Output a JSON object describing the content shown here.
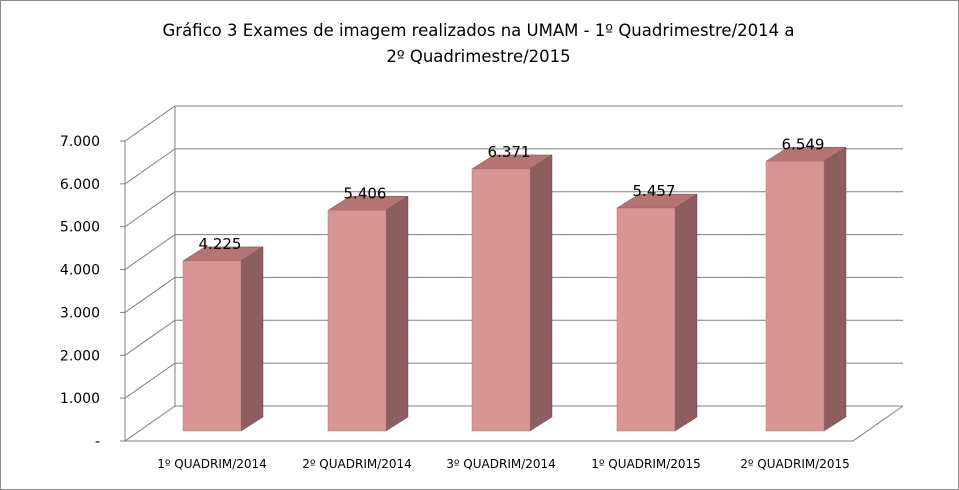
{
  "chart_data": {
    "type": "bar",
    "title": "Gráfico 3 Exames de imagem realizados na UMAM - 1º Quadrimestre/2014 a 2º Quadrimestre/2015",
    "title_lines": [
      "Gráfico 3 Exames de imagem realizados na UMAM - 1º Quadrimestre/2014 a",
      "2º Quadrimestre/2015"
    ],
    "categories": [
      "1º QUADRIM/2014",
      "2º QUADRIM/2014",
      "3º QUADRIM/2014",
      "1º QUADRIM/2015",
      "2º QUADRIM/2015"
    ],
    "values": [
      4225,
      5406,
      6371,
      5457,
      6549
    ],
    "data_labels": [
      "4.225",
      "5.406",
      "6.371",
      "5.457",
      "6.549"
    ],
    "y_ticks": [
      0,
      1000,
      2000,
      3000,
      4000,
      5000,
      6000,
      7000
    ],
    "y_tick_labels": [
      "-",
      "1.000",
      "2.000",
      "3.000",
      "4.000",
      "5.000",
      "6.000",
      "7.000"
    ],
    "ylim": [
      0,
      7000
    ],
    "xlabel": "",
    "ylabel": "",
    "grid": true,
    "legend": "none",
    "style": "3d-column",
    "colors": {
      "bar_front": "#d99594",
      "bar_top": "#b57473",
      "bar_side": "#8c5e5d",
      "grid": "#7f7f7f"
    }
  }
}
